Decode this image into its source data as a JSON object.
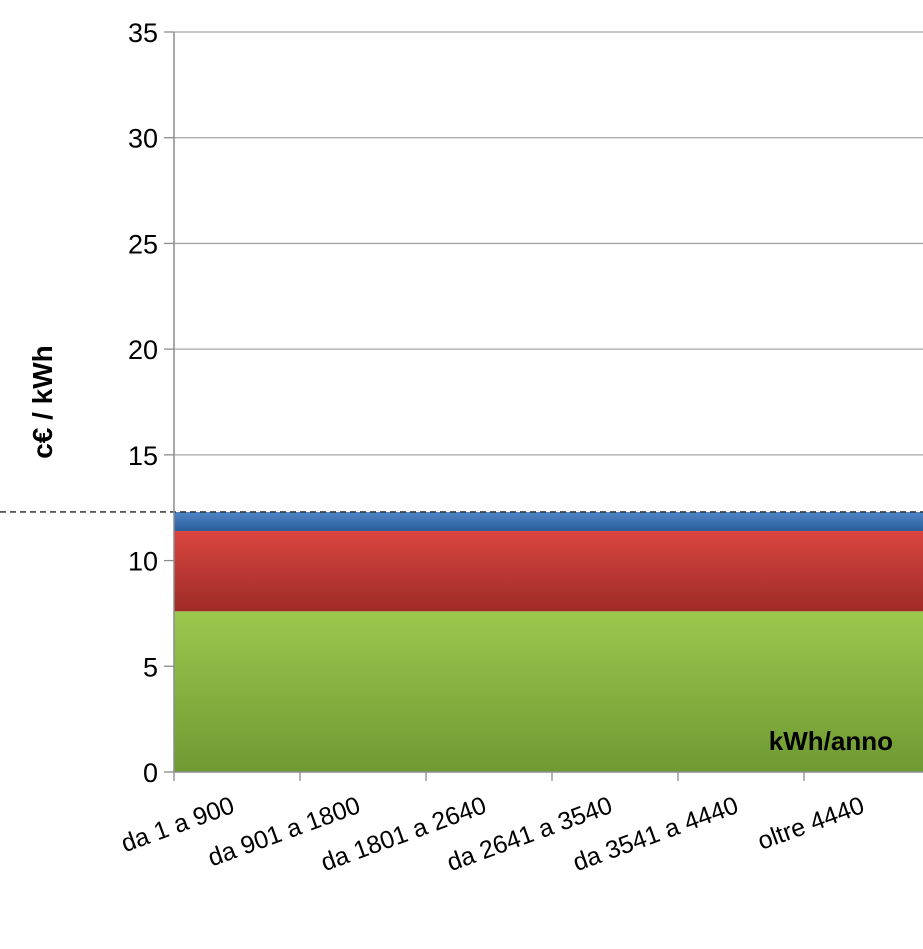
{
  "chart_data": {
    "type": "area",
    "ylabel": "c€ / kWh",
    "xlabel": "",
    "annotation": "kWh/anno",
    "ylim": [
      0,
      35
    ],
    "y_ticks": [
      "0",
      "5",
      "10",
      "15",
      "20",
      "25",
      "30",
      "35"
    ],
    "categories": [
      "da 1 a 900",
      "da 901 a 1800",
      "da 1801 a 2640",
      "da 2641 a 3540",
      "da 3541 a 4440",
      "oltre 4440"
    ],
    "grid": true,
    "stacked": true,
    "series": [
      {
        "values": [
          7.6,
          7.6,
          7.6,
          7.6,
          7.6,
          7.6
        ],
        "color_top": "#9bc84e",
        "color_bottom": "#6e9a32"
      },
      {
        "values": [
          3.8,
          3.8,
          3.8,
          3.8,
          3.8,
          3.8
        ],
        "color_top": "#d9463f",
        "color_bottom": "#9e2b27"
      },
      {
        "values": [
          0.9,
          0.9,
          0.9,
          0.9,
          0.9,
          0.9
        ],
        "color_top": "#4f86c6",
        "color_bottom": "#2a5d9b"
      }
    ],
    "reference_line": {
      "value": 12.3,
      "style": "dashed"
    }
  }
}
